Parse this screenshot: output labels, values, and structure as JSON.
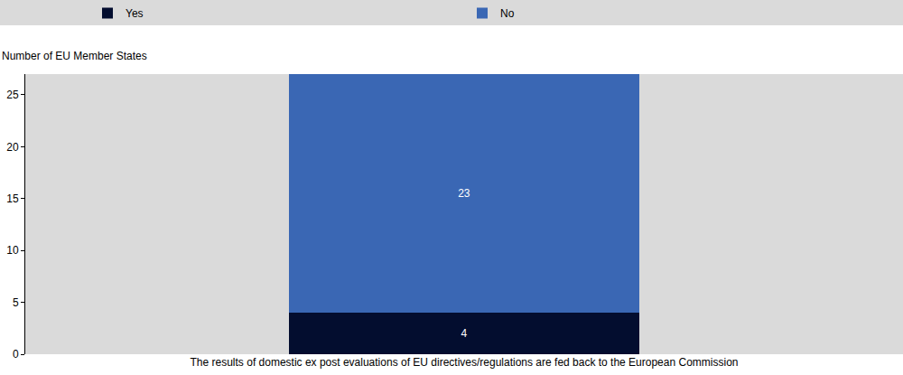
{
  "chart_data": {
    "type": "bar",
    "stacked": true,
    "data_labels": true,
    "grid": false,
    "legend": "top",
    "y_label": "Number of EU Member States",
    "categories": [
      "The results of domestic ex post evaluations of EU directives/regulations are fed back to the European Commission"
    ],
    "series": [
      {
        "name": "Yes",
        "color": "#030d2f",
        "values": [
          4
        ]
      },
      {
        "name": "No",
        "color": "#3a67b4",
        "values": [
          23
        ]
      }
    ],
    "ylim": [
      0,
      27
    ],
    "yticks": [
      0,
      5,
      10,
      15,
      20,
      25
    ]
  }
}
